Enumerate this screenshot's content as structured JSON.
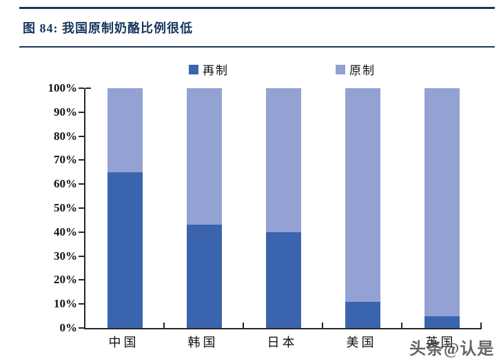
{
  "header": {
    "title": "图 84: 我国原制奶酪比例很低"
  },
  "colors": {
    "accent_navy": "#17365D",
    "bar_dark": "#3B64AE",
    "bar_light": "#93A2D3",
    "axis": "#262626",
    "watermark_gray": "#4a4a4a"
  },
  "legend": {
    "items": [
      {
        "label": "再制",
        "color": "#3B64AE"
      },
      {
        "label": "原制",
        "color": "#93A2D3"
      }
    ]
  },
  "watermark": "头条@认是",
  "chart_data": {
    "type": "bar",
    "stacked": true,
    "title": "图 84: 我国原制奶酪比例很低",
    "categories": [
      "中国",
      "韩国",
      "日本",
      "美国",
      "英国"
    ],
    "series": [
      {
        "name": "再制",
        "color": "#3B64AE",
        "values": [
          65,
          43,
          40,
          11,
          5
        ]
      },
      {
        "name": "原制",
        "color": "#93A2D3",
        "values": [
          35,
          57,
          60,
          89,
          95
        ]
      }
    ],
    "xlabel": "",
    "ylabel": "",
    "ylim": [
      0,
      100
    ],
    "ytick_step": 10,
    "yticks": [
      "0%",
      "10%",
      "20%",
      "30%",
      "40%",
      "50%",
      "60%",
      "70%",
      "80%",
      "90%",
      "100%"
    ],
    "legend_position": "top",
    "grid": false
  }
}
